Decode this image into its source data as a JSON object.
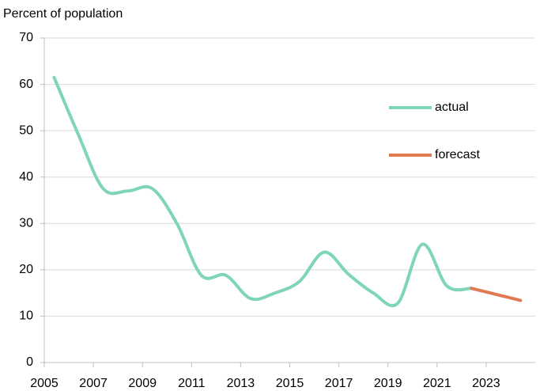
{
  "chart_data": {
    "type": "line",
    "y_label": "Percent of population",
    "x": [
      2005.4,
      2006.4,
      2007.4,
      2008.4,
      2009.4,
      2010.4,
      2011.4,
      2012.4,
      2013.4,
      2014.4,
      2015.4,
      2016.4,
      2017.4,
      2018.4,
      2019.4,
      2020.4,
      2021.4,
      2022.4,
      2023.4,
      2024.4
    ],
    "series": [
      {
        "name": "actual",
        "color": "#7fd6b5",
        "values": [
          61.5,
          49,
          37.5,
          37,
          37.5,
          30,
          18.8,
          18.8,
          13.8,
          15,
          17.5,
          23.8,
          19,
          15,
          12.8,
          25.5,
          16.5,
          16,
          null,
          null
        ]
      },
      {
        "name": "forecast",
        "color": "#e07a52",
        "values": [
          null,
          null,
          null,
          null,
          null,
          null,
          null,
          null,
          null,
          null,
          null,
          null,
          null,
          null,
          null,
          null,
          null,
          16,
          14.7,
          13.4
        ]
      }
    ],
    "xlim": [
      2005,
      2025
    ],
    "xticks": [
      2005,
      2007,
      2009,
      2011,
      2013,
      2015,
      2017,
      2019,
      2021,
      2023
    ],
    "ylim": [
      0,
      70
    ],
    "yticks": [
      0,
      10,
      20,
      30,
      40,
      50,
      60,
      70
    ],
    "grid": true,
    "legend": "upper right"
  }
}
